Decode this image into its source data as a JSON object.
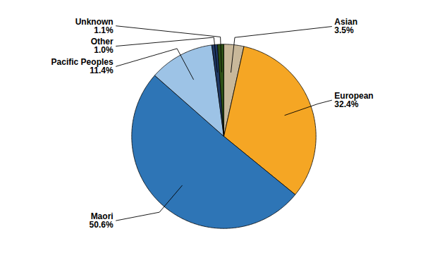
{
  "chart_data": {
    "type": "pie",
    "categories": [
      "Asian",
      "European",
      "Maori",
      "Pacific Peoples",
      "Other",
      "Unknown"
    ],
    "values": [
      3.5,
      32.4,
      50.6,
      11.4,
      1.0,
      1.1
    ],
    "value_labels": [
      "3.5%",
      "32.4%",
      "50.6%",
      "11.4%",
      "1.0%",
      "1.1%"
    ],
    "colors": [
      "#C8B89A",
      "#F5A624",
      "#2E75B6",
      "#9DC3E6",
      "#1F3864",
      "#2D5016"
    ],
    "data_labels": true
  }
}
